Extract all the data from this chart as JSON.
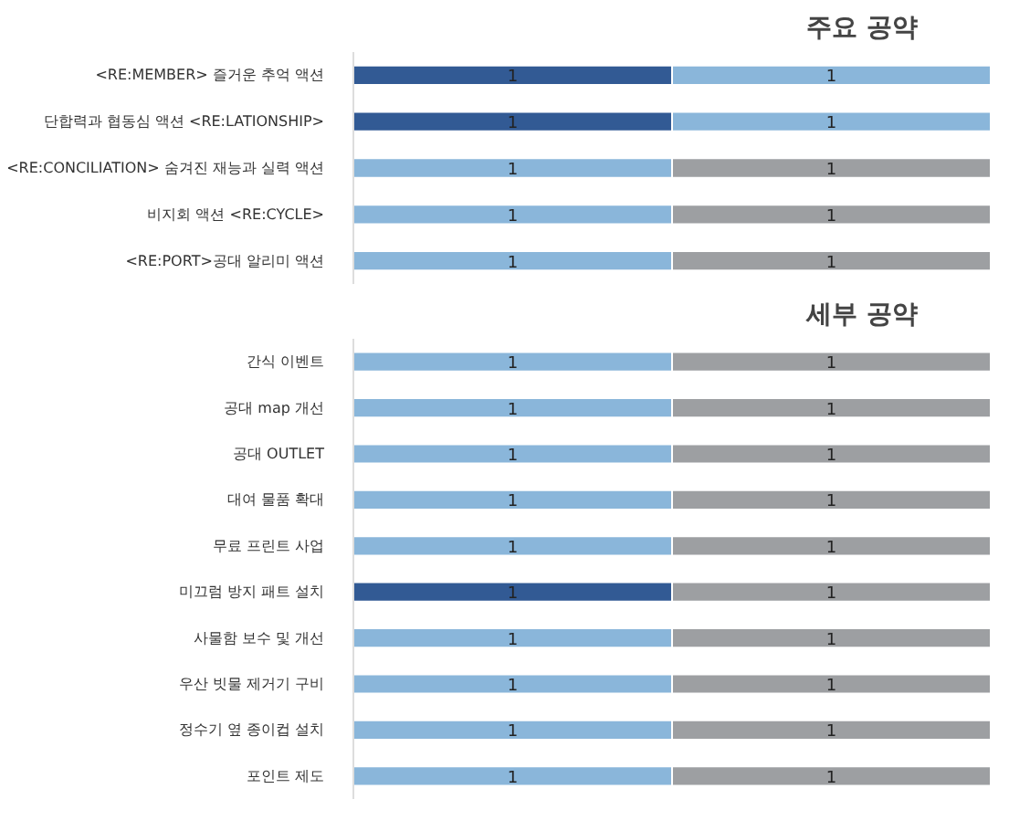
{
  "chart_data": [
    {
      "type": "bar",
      "orientation": "horizontal",
      "stacked": true,
      "title": "주요 공약",
      "categories": [
        "<RE:MEMBER> 즐거운 추억 액션",
        "단합력과 협동심 액션 <RE:LATIONSHIP>",
        "<RE:CONCILIATION> 숨겨진 재능과 실력 액션",
        "비지회 액션 <RE:CYCLE>",
        "<RE:PORT>공대 알리미 액션"
      ],
      "series": [
        {
          "colors": [
            "#325a94",
            "#325a94",
            "#8ab6da",
            "#8ab6da",
            "#8ab6da"
          ],
          "values": [
            1,
            1,
            1,
            1,
            1
          ]
        },
        {
          "colors": [
            "#8ab6da",
            "#8ab6da",
            "#9d9fa2",
            "#9d9fa2",
            "#9d9fa2"
          ],
          "values": [
            1,
            1,
            1,
            1,
            1
          ]
        }
      ],
      "data_labels": true,
      "grid": false,
      "tick_labels": "y"
    },
    {
      "type": "bar",
      "orientation": "horizontal",
      "stacked": true,
      "title": "세부 공약",
      "categories": [
        "간식 이벤트",
        "공대 map 개선",
        "공대 OUTLET",
        "대여 물품 확대",
        "무료 프린트 사업",
        "미끄럼 방지 패트 설치",
        "사물함 보수 및 개선",
        "우산 빗물 제거기 구비",
        "정수기 옆 종이컵 설치",
        "포인트 제도"
      ],
      "series": [
        {
          "colors": [
            "#8ab6da",
            "#8ab6da",
            "#8ab6da",
            "#8ab6da",
            "#8ab6da",
            "#325a94",
            "#8ab6da",
            "#8ab6da",
            "#8ab6da",
            "#8ab6da"
          ],
          "values": [
            1,
            1,
            1,
            1,
            1,
            1,
            1,
            1,
            1,
            1
          ]
        },
        {
          "colors": [
            "#9d9fa2",
            "#9d9fa2",
            "#9d9fa2",
            "#9d9fa2",
            "#9d9fa2",
            "#9d9fa2",
            "#9d9fa2",
            "#9d9fa2",
            "#9d9fa2",
            "#9d9fa2"
          ],
          "values": [
            1,
            1,
            1,
            1,
            1,
            1,
            1,
            1,
            1,
            1
          ]
        }
      ],
      "data_labels": true,
      "grid": false,
      "tick_labels": "y"
    }
  ]
}
